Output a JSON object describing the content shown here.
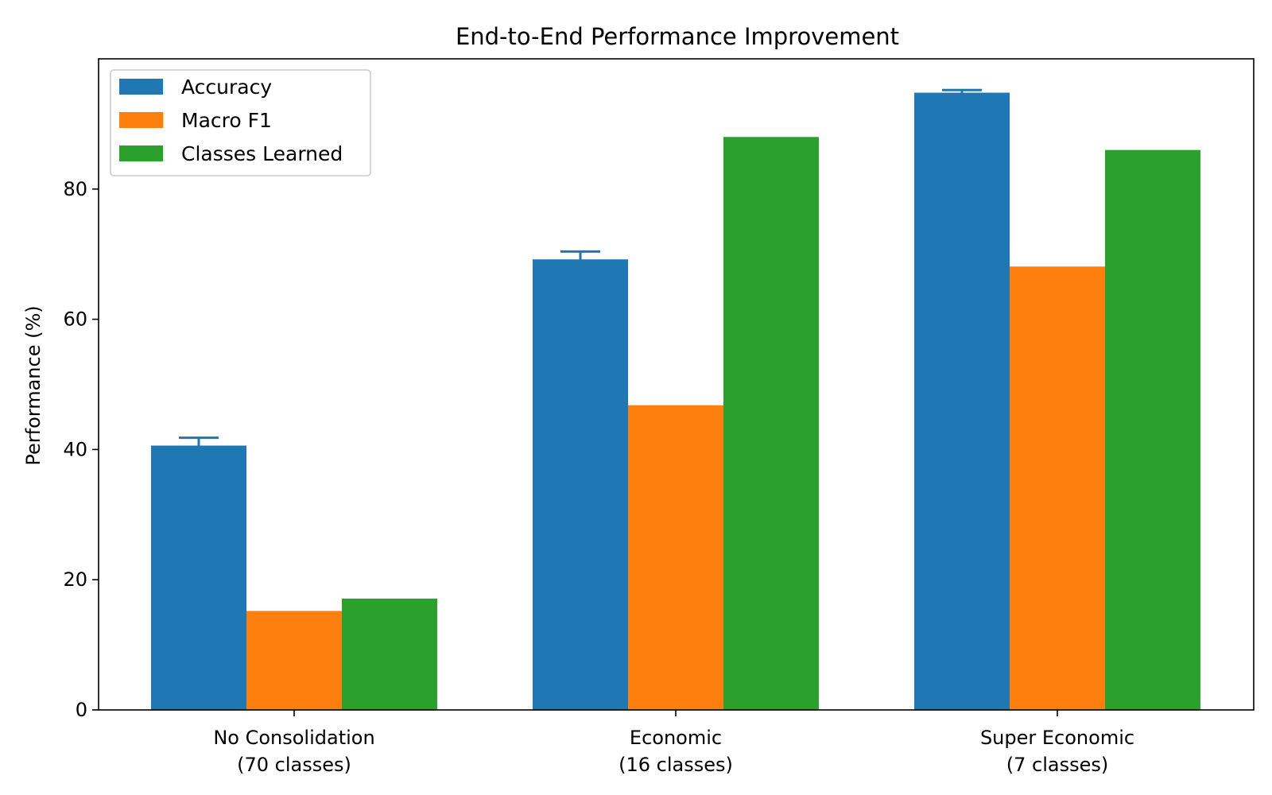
{
  "chart_data": {
    "type": "bar",
    "title": "End-to-End Performance Improvement",
    "xlabel": "",
    "ylabel": "Performance (%)",
    "ylim": [
      0,
      100
    ],
    "yticks": [
      0,
      20,
      40,
      60,
      80
    ],
    "categories": [
      "No Consolidation\n(70 classes)",
      "Economic\n(16 classes)",
      "Super Economic\n(7 classes)"
    ],
    "series": [
      {
        "name": "Accuracy",
        "color": "#1f77b4",
        "values": [
          40.6,
          69.2,
          94.8
        ],
        "errors": [
          1.2,
          1.2,
          0.4
        ]
      },
      {
        "name": "Macro F1",
        "color": "#ff7f0e",
        "values": [
          15.2,
          46.8,
          68.1
        ]
      },
      {
        "name": "Classes Learned",
        "color": "#2ca02c",
        "values": [
          17.1,
          88.0,
          86.0
        ]
      }
    ],
    "legend_position": "top-left",
    "grid": false
  }
}
